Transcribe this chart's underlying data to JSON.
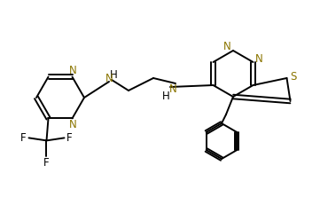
{
  "bg_color": "#ffffff",
  "bond_color": "#000000",
  "atom_colors": {
    "N": "#8b7500",
    "S": "#8b7500",
    "F": "#000000"
  },
  "figsize": [
    3.61,
    2.31
  ],
  "dpi": 100
}
